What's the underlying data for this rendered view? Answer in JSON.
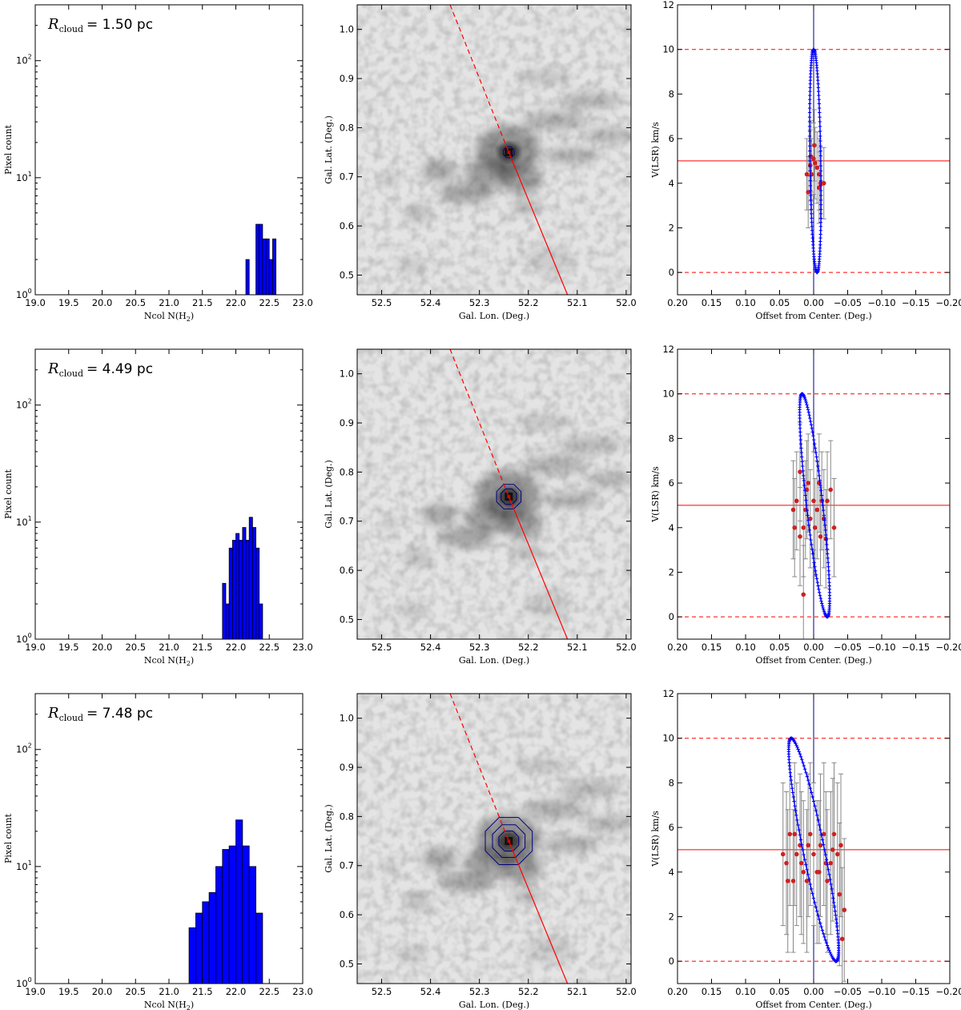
{
  "annotations": {
    "r_symbol": "R",
    "r_subscript": "cloud",
    "r_values": [
      "= 1.50 pc",
      "= 4.49 pc",
      "= 7.48 pc"
    ]
  },
  "axis_labels": {
    "hist_x": "Ncol N(H",
    "hist_x_sub": "2",
    "hist_x_end": ")",
    "hist_y": "Pixel count",
    "map_x": "Gal. Lon. (Deg.)",
    "map_y": "Gal. Lat. (Deg.)",
    "pv_x": "Offset from Center. (Deg.)",
    "pv_y": "V(LSR) km/s"
  },
  "colors": {
    "bar_fill": "#0000ff",
    "ellipse": "#0000ff",
    "contour": "#000080",
    "red_line": "#ff0000",
    "points": "#cc2222",
    "errorbar": "#888888"
  },
  "chart_data": [
    {
      "type": "bar",
      "panel": "histogram",
      "row": 1,
      "xlim": [
        19.0,
        23.0
      ],
      "ylim": [
        1,
        300
      ],
      "yscale": "log",
      "xticks": [
        "19.0",
        "19.5",
        "20.0",
        "20.5",
        "21.0",
        "21.5",
        "22.0",
        "22.5",
        "23.0"
      ],
      "yticks": [
        "10^0",
        "10^1",
        "10^2"
      ],
      "bin_width": 0.05,
      "bins": [
        [
          22.15,
          2
        ],
        [
          22.3,
          4
        ],
        [
          22.35,
          4
        ],
        [
          22.4,
          3
        ],
        [
          22.45,
          3
        ],
        [
          22.5,
          2
        ],
        [
          22.55,
          3
        ]
      ]
    },
    {
      "type": "heatmap",
      "panel": "map",
      "row": 1,
      "xlim": [
        52.55,
        51.99
      ],
      "ylim": [
        0.46,
        1.05
      ],
      "xticks": [
        "52.5",
        "52.4",
        "52.3",
        "52.2",
        "52.1",
        "52.0"
      ],
      "yticks": [
        "0.5",
        "0.6",
        "0.7",
        "0.8",
        "0.9",
        "1.0"
      ],
      "center": [
        52.24,
        0.75
      ],
      "contours_deg": [
        0.012
      ]
    },
    {
      "type": "scatter",
      "panel": "position-velocity",
      "row": 1,
      "xlim": [
        0.2,
        -0.2
      ],
      "ylim": [
        -1,
        12
      ],
      "xticks": [
        "0.20",
        "0.15",
        "0.10",
        "0.05",
        "0.00",
        "−0.05",
        "−0.10",
        "−0.15",
        "−0.20"
      ],
      "yticks": [
        "0",
        "2",
        "4",
        "6",
        "8",
        "10",
        "12"
      ],
      "hlines": {
        "solid": 5,
        "dashed": [
          0,
          10
        ]
      },
      "ellipse": {
        "top_x": 0.0,
        "bottom_x": -0.005,
        "half_width": 0.008
      },
      "points": [
        [
          0.0,
          5.1
        ],
        [
          0.005,
          4.8
        ],
        [
          0.003,
          4.4
        ],
        [
          -0.002,
          4.9
        ],
        [
          -0.005,
          4.7
        ],
        [
          -0.008,
          4.4
        ],
        [
          -0.01,
          4.0
        ],
        [
          -0.015,
          4.0
        ],
        [
          -0.008,
          3.8
        ],
        [
          0.01,
          4.4
        ],
        [
          -0.001,
          5.7
        ],
        [
          0.004,
          5.2
        ],
        [
          0.008,
          3.6
        ]
      ],
      "errorbar": 1.6
    },
    {
      "type": "bar",
      "panel": "histogram",
      "row": 2,
      "xlim": [
        19.0,
        23.0
      ],
      "ylim": [
        1,
        300
      ],
      "yscale": "log",
      "xticks": [
        "19.0",
        "19.5",
        "20.0",
        "20.5",
        "21.0",
        "21.5",
        "22.0",
        "22.5",
        "23.0"
      ],
      "yticks": [
        "10^0",
        "10^1",
        "10^2"
      ],
      "bin_width": 0.05,
      "bins": [
        [
          21.8,
          3
        ],
        [
          21.85,
          2
        ],
        [
          21.9,
          6
        ],
        [
          21.95,
          7
        ],
        [
          22.0,
          8
        ],
        [
          22.05,
          7
        ],
        [
          22.1,
          9
        ],
        [
          22.15,
          7
        ],
        [
          22.2,
          11
        ],
        [
          22.25,
          9
        ],
        [
          22.3,
          6
        ],
        [
          22.35,
          2
        ]
      ]
    },
    {
      "type": "heatmap",
      "panel": "map",
      "row": 2,
      "xlim": [
        52.55,
        51.99
      ],
      "ylim": [
        0.46,
        1.05
      ],
      "xticks": [
        "52.5",
        "52.4",
        "52.3",
        "52.2",
        "52.1",
        "52.0"
      ],
      "yticks": [
        "0.5",
        "0.6",
        "0.7",
        "0.8",
        "0.9",
        "1.0"
      ],
      "center": [
        52.24,
        0.75
      ],
      "contours_deg": [
        0.017,
        0.027
      ]
    },
    {
      "type": "scatter",
      "panel": "position-velocity",
      "row": 2,
      "xlim": [
        0.2,
        -0.2
      ],
      "ylim": [
        -1,
        12
      ],
      "xticks": [
        "0.20",
        "0.15",
        "0.10",
        "0.05",
        "0.00",
        "−0.05",
        "−0.10",
        "−0.15",
        "−0.20"
      ],
      "yticks": [
        "0",
        "2",
        "4",
        "6",
        "8",
        "10",
        "12"
      ],
      "hlines": {
        "solid": 5,
        "dashed": [
          0,
          10
        ]
      },
      "ellipse": {
        "top_x": 0.017,
        "bottom_x": -0.02,
        "half_width": 0.012
      },
      "points": [
        [
          0.015,
          1.0
        ],
        [
          0.03,
          4.8
        ],
        [
          0.025,
          5.2
        ],
        [
          0.02,
          3.6
        ],
        [
          0.015,
          4.0
        ],
        [
          0.01,
          5.7
        ],
        [
          0.008,
          6.0
        ],
        [
          0.005,
          4.4
        ],
        [
          0.0,
          5.2
        ],
        [
          -0.005,
          4.8
        ],
        [
          -0.01,
          3.6
        ],
        [
          -0.015,
          4.4
        ],
        [
          -0.02,
          5.2
        ],
        [
          -0.025,
          5.7
        ],
        [
          -0.03,
          4.0
        ],
        [
          0.02,
          6.5
        ],
        [
          0.028,
          4.0
        ],
        [
          -0.008,
          6.0
        ],
        [
          -0.018,
          3.5
        ],
        [
          0.012,
          4.8
        ],
        [
          -0.012,
          5.2
        ],
        [
          -0.002,
          4.0
        ]
      ],
      "errorbar": 2.2
    },
    {
      "type": "bar",
      "panel": "histogram",
      "row": 3,
      "xlim": [
        19.0,
        23.0
      ],
      "ylim": [
        1,
        300
      ],
      "yscale": "log",
      "xticks": [
        "19.0",
        "19.5",
        "20.0",
        "20.5",
        "21.0",
        "21.5",
        "22.0",
        "22.5",
        "23.0"
      ],
      "yticks": [
        "10^0",
        "10^1",
        "10^2"
      ],
      "bin_width": 0.1,
      "bins": [
        [
          21.3,
          3
        ],
        [
          21.4,
          4
        ],
        [
          21.5,
          5
        ],
        [
          21.6,
          6
        ],
        [
          21.7,
          10
        ],
        [
          21.8,
          14
        ],
        [
          21.9,
          15
        ],
        [
          22.0,
          25
        ],
        [
          22.1,
          15
        ],
        [
          22.2,
          10
        ],
        [
          22.3,
          4
        ]
      ]
    },
    {
      "type": "heatmap",
      "panel": "map",
      "row": 3,
      "xlim": [
        52.55,
        51.99
      ],
      "ylim": [
        0.46,
        1.05
      ],
      "xticks": [
        "52.5",
        "52.4",
        "52.3",
        "52.2",
        "52.1",
        "52.0"
      ],
      "yticks": [
        "0.5",
        "0.6",
        "0.7",
        "0.8",
        "0.9",
        "1.0"
      ],
      "center": [
        52.24,
        0.75
      ],
      "contours_deg": [
        0.022,
        0.036,
        0.052
      ]
    },
    {
      "type": "scatter",
      "panel": "position-velocity",
      "row": 3,
      "xlim": [
        0.2,
        -0.2
      ],
      "ylim": [
        -1,
        12
      ],
      "xticks": [
        "0.20",
        "0.15",
        "0.10",
        "0.05",
        "0.00",
        "−0.05",
        "−0.10",
        "−0.15",
        "−0.20"
      ],
      "yticks": [
        "0",
        "2",
        "4",
        "6",
        "8",
        "10",
        "12"
      ],
      "hlines": {
        "solid": 5,
        "dashed": [
          0,
          10
        ]
      },
      "ellipse": {
        "top_x": 0.033,
        "bottom_x": -0.033,
        "half_width": 0.016
      },
      "points": [
        [
          0.045,
          4.8
        ],
        [
          0.04,
          4.4
        ],
        [
          0.035,
          5.7
        ],
        [
          0.03,
          3.6
        ],
        [
          0.025,
          4.8
        ],
        [
          0.02,
          5.2
        ],
        [
          0.015,
          4.0
        ],
        [
          0.01,
          3.6
        ],
        [
          0.005,
          5.7
        ],
        [
          0.0,
          4.8
        ],
        [
          -0.005,
          4.0
        ],
        [
          -0.01,
          5.2
        ],
        [
          -0.015,
          5.7
        ],
        [
          -0.02,
          3.6
        ],
        [
          -0.025,
          4.4
        ],
        [
          -0.03,
          5.7
        ],
        [
          -0.035,
          4.8
        ],
        [
          -0.04,
          5.2
        ],
        [
          -0.045,
          2.3
        ],
        [
          -0.042,
          1.0
        ],
        [
          -0.038,
          3.0
        ],
        [
          0.038,
          3.6
        ],
        [
          -0.028,
          5.0
        ],
        [
          0.018,
          4.4
        ],
        [
          -0.018,
          4.4
        ],
        [
          0.028,
          5.7
        ],
        [
          -0.008,
          4.0
        ],
        [
          0.008,
          5.2
        ]
      ],
      "errorbar": 3.2
    }
  ]
}
